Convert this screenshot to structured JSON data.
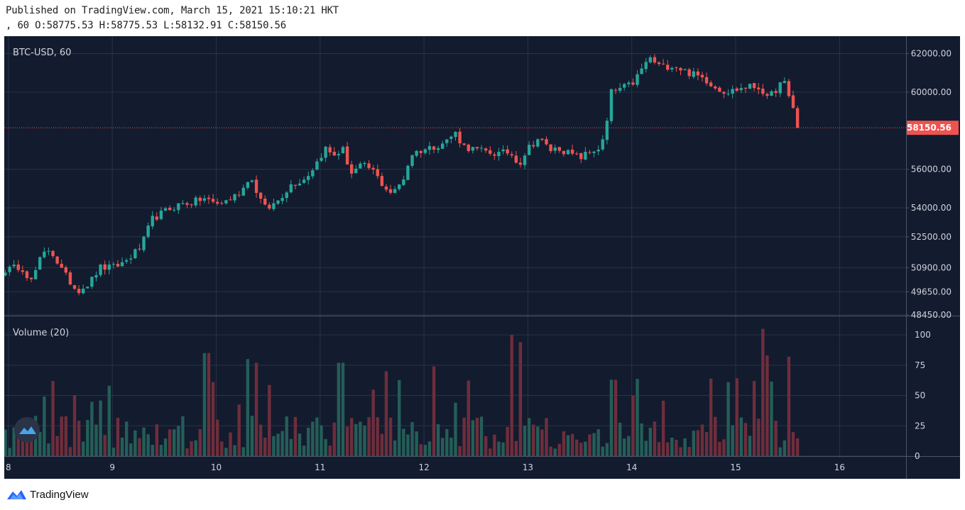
{
  "header": {
    "published": "Published on TradingView.com, March 15, 2021 15:10:21 HKT",
    "ohlc": ", 60 O:58775.53 H:58775.53 L:58132.91 C:58150.56"
  },
  "colors": {
    "background": "#131b2e",
    "grid": "#2a3347",
    "up": "#26a69a",
    "down": "#ef5350",
    "vol_up": "#245e58",
    "vol_down": "#6e2e3c",
    "price_line": "#ef5350",
    "text": "#cfd3dc"
  },
  "chart_data": [
    {
      "type": "candlestick",
      "title": "BTC-USD, 60",
      "symbol": "BTC-USD",
      "interval": "60",
      "ylim": [
        48450,
        62900
      ],
      "y_ticks": [
        "62000.00",
        "60000.00",
        "56000.00",
        "54000.00",
        "52500.00",
        "50900.00",
        "49650.00",
        "48450.00"
      ],
      "last_price": "58150.56",
      "x_ticks": [
        "8",
        "9",
        "10",
        "11",
        "12",
        "13",
        "14",
        "15",
        "16"
      ],
      "x_range_days": [
        7.96,
        16.64
      ],
      "anchors": [
        [
          8.0,
          50800
        ],
        [
          8.12,
          51000
        ],
        [
          8.22,
          50200
        ],
        [
          8.32,
          51500
        ],
        [
          8.4,
          51900
        ],
        [
          8.52,
          50700
        ],
        [
          8.66,
          49700
        ],
        [
          8.78,
          50100
        ],
        [
          8.88,
          50900
        ],
        [
          9.0,
          50900
        ],
        [
          9.12,
          51200
        ],
        [
          9.28,
          52000
        ],
        [
          9.38,
          53400
        ],
        [
          9.5,
          53800
        ],
        [
          9.65,
          54200
        ],
        [
          9.78,
          54300
        ],
        [
          9.88,
          54500
        ],
        [
          10.0,
          54200
        ],
        [
          10.12,
          54400
        ],
        [
          10.25,
          54900
        ],
        [
          10.32,
          55700
        ],
        [
          10.42,
          54500
        ],
        [
          10.48,
          53900
        ],
        [
          10.58,
          54300
        ],
        [
          10.72,
          55200
        ],
        [
          10.85,
          55500
        ],
        [
          10.95,
          56200
        ],
        [
          11.05,
          57100
        ],
        [
          11.12,
          56700
        ],
        [
          11.22,
          57000
        ],
        [
          11.3,
          55800
        ],
        [
          11.4,
          56200
        ],
        [
          11.5,
          56000
        ],
        [
          11.6,
          55200
        ],
        [
          11.7,
          54700
        ],
        [
          11.8,
          55500
        ],
        [
          11.88,
          56800
        ],
        [
          11.98,
          57000
        ],
        [
          12.1,
          57200
        ],
        [
          12.2,
          57400
        ],
        [
          12.3,
          57900
        ],
        [
          12.38,
          57200
        ],
        [
          12.5,
          57000
        ],
        [
          12.6,
          56900
        ],
        [
          12.72,
          56800
        ],
        [
          12.82,
          56900
        ],
        [
          12.92,
          56300
        ],
        [
          13.0,
          57100
        ],
        [
          13.1,
          57600
        ],
        [
          13.22,
          57000
        ],
        [
          13.3,
          57100
        ],
        [
          13.4,
          56800
        ],
        [
          13.5,
          56600
        ],
        [
          13.6,
          56900
        ],
        [
          13.68,
          57100
        ],
        [
          13.74,
          57600
        ],
        [
          13.8,
          60000
        ],
        [
          13.9,
          60200
        ],
        [
          14.0,
          60400
        ],
        [
          14.1,
          61200
        ],
        [
          14.16,
          61800
        ],
        [
          14.28,
          61300
        ],
        [
          14.4,
          61400
        ],
        [
          14.55,
          61000
        ],
        [
          14.7,
          60700
        ],
        [
          14.82,
          60200
        ],
        [
          14.92,
          60000
        ],
        [
          15.05,
          60200
        ],
        [
          15.15,
          60300
        ],
        [
          15.25,
          60200
        ],
        [
          15.3,
          59600
        ],
        [
          15.38,
          60100
        ],
        [
          15.46,
          60600
        ],
        [
          15.52,
          59600
        ],
        [
          15.58,
          58900
        ],
        [
          15.62,
          58150
        ]
      ],
      "volume": {
        "title": "Volume (20)",
        "ylim": [
          0,
          110
        ],
        "y_ticks": [
          0,
          25,
          50,
          75,
          100
        ],
        "spikes": [
          [
            9.91,
            85
          ],
          [
            10.3,
            80
          ],
          [
            10.38,
            77
          ],
          [
            11.2,
            77
          ],
          [
            11.65,
            70
          ],
          [
            12.08,
            74
          ],
          [
            12.85,
            100
          ],
          [
            12.92,
            94
          ],
          [
            13.82,
            63
          ],
          [
            14.0,
            50
          ],
          [
            15.25,
            105
          ],
          [
            15.3,
            83
          ],
          [
            15.5,
            82
          ],
          [
            15.18,
            62
          ],
          [
            14.92,
            61
          ]
        ]
      }
    }
  ],
  "footer": {
    "brand": "TradingView"
  }
}
